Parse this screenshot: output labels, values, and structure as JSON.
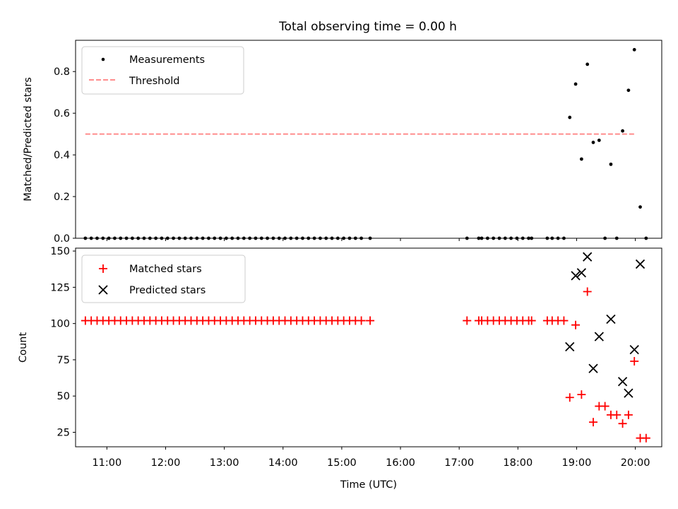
{
  "chart_data": [
    {
      "type": "scatter",
      "title": "Total observing time = 0.00 h",
      "xlabel": "",
      "ylabel": "Matched/Predicted stars",
      "xlim": [
        "10:28",
        "20:27"
      ],
      "ylim": [
        0,
        0.95
      ],
      "yticks": [
        "0.0",
        "0.2",
        "0.4",
        "0.6",
        "0.8"
      ],
      "grid": false,
      "legend_position": "upper-left",
      "series": [
        {
          "name": "Measurements",
          "marker": "dot",
          "color": "#000000",
          "points": [
            [
              "10:38",
              0
            ],
            [
              "10:44",
              0
            ],
            [
              "10:50",
              0
            ],
            [
              "10:56",
              0
            ],
            [
              "11:02",
              0
            ],
            [
              "11:08",
              0
            ],
            [
              "11:14",
              0
            ],
            [
              "11:20",
              0
            ],
            [
              "11:26",
              0
            ],
            [
              "11:32",
              0
            ],
            [
              "11:38",
              0
            ],
            [
              "11:44",
              0
            ],
            [
              "11:50",
              0
            ],
            [
              "11:56",
              0
            ],
            [
              "12:02",
              0
            ],
            [
              "12:08",
              0
            ],
            [
              "12:14",
              0
            ],
            [
              "12:20",
              0
            ],
            [
              "12:26",
              0
            ],
            [
              "12:32",
              0
            ],
            [
              "12:38",
              0
            ],
            [
              "12:44",
              0
            ],
            [
              "12:50",
              0
            ],
            [
              "12:56",
              0
            ],
            [
              "13:02",
              0
            ],
            [
              "13:08",
              0
            ],
            [
              "13:14",
              0
            ],
            [
              "13:20",
              0
            ],
            [
              "13:26",
              0
            ],
            [
              "13:32",
              0
            ],
            [
              "13:38",
              0
            ],
            [
              "13:44",
              0
            ],
            [
              "13:50",
              0
            ],
            [
              "13:56",
              0
            ],
            [
              "14:02",
              0
            ],
            [
              "14:08",
              0
            ],
            [
              "14:14",
              0
            ],
            [
              "14:20",
              0
            ],
            [
              "14:26",
              0
            ],
            [
              "14:32",
              0
            ],
            [
              "14:38",
              0
            ],
            [
              "14:44",
              0
            ],
            [
              "14:50",
              0
            ],
            [
              "14:56",
              0
            ],
            [
              "15:02",
              0
            ],
            [
              "15:08",
              0
            ],
            [
              "15:14",
              0
            ],
            [
              "15:20",
              0
            ],
            [
              "15:29",
              0
            ],
            [
              "17:08",
              0
            ],
            [
              "17:20",
              0
            ],
            [
              "17:23",
              0
            ],
            [
              "17:29",
              0
            ],
            [
              "17:35",
              0
            ],
            [
              "17:41",
              0
            ],
            [
              "17:47",
              0
            ],
            [
              "17:53",
              0
            ],
            [
              "17:59",
              0
            ],
            [
              "18:05",
              0
            ],
            [
              "18:11",
              0
            ],
            [
              "18:14",
              0
            ],
            [
              "18:30",
              0
            ],
            [
              "18:35",
              0
            ],
            [
              "18:41",
              0
            ],
            [
              "18:47",
              0
            ],
            [
              "18:53",
              0.58
            ],
            [
              "18:59",
              0.74
            ],
            [
              "19:05",
              0.38
            ],
            [
              "19:11",
              0.835
            ],
            [
              "19:17",
              0.46
            ],
            [
              "19:23",
              0.47
            ],
            [
              "19:29",
              0
            ],
            [
              "19:35",
              0.355
            ],
            [
              "19:41",
              0
            ],
            [
              "19:47",
              0.515
            ],
            [
              "19:53",
              0.71
            ],
            [
              "19:59",
              0.905
            ],
            [
              "20:05",
              0.15
            ],
            [
              "20:11",
              0
            ]
          ]
        },
        {
          "name": "Threshold",
          "marker": "dashed-line",
          "color": "#ff7f7f",
          "points": [
            [
              "10:38",
              0.5
            ],
            [
              "20:00",
              0.5
            ]
          ]
        }
      ]
    },
    {
      "type": "scatter",
      "title": "",
      "xlabel": "Time (UTC)",
      "ylabel": "Count",
      "xlim": [
        "10:28",
        "20:27"
      ],
      "ylim": [
        15,
        152
      ],
      "yticks": [
        "25",
        "50",
        "75",
        "100",
        "125",
        "150"
      ],
      "xticks": [
        "11:00",
        "12:00",
        "13:00",
        "14:00",
        "15:00",
        "16:00",
        "17:00",
        "18:00",
        "19:00",
        "20:00"
      ],
      "grid": false,
      "legend_position": "upper-left",
      "series": [
        {
          "name": "Matched stars",
          "marker": "plus",
          "color": "#ff0000",
          "points": [
            [
              "10:38",
              102
            ],
            [
              "10:44",
              102
            ],
            [
              "10:50",
              102
            ],
            [
              "10:56",
              102
            ],
            [
              "11:02",
              102
            ],
            [
              "11:08",
              102
            ],
            [
              "11:14",
              102
            ],
            [
              "11:20",
              102
            ],
            [
              "11:26",
              102
            ],
            [
              "11:32",
              102
            ],
            [
              "11:38",
              102
            ],
            [
              "11:44",
              102
            ],
            [
              "11:50",
              102
            ],
            [
              "11:56",
              102
            ],
            [
              "12:02",
              102
            ],
            [
              "12:08",
              102
            ],
            [
              "12:14",
              102
            ],
            [
              "12:20",
              102
            ],
            [
              "12:26",
              102
            ],
            [
              "12:32",
              102
            ],
            [
              "12:38",
              102
            ],
            [
              "12:44",
              102
            ],
            [
              "12:50",
              102
            ],
            [
              "12:56",
              102
            ],
            [
              "13:02",
              102
            ],
            [
              "13:08",
              102
            ],
            [
              "13:14",
              102
            ],
            [
              "13:20",
              102
            ],
            [
              "13:26",
              102
            ],
            [
              "13:32",
              102
            ],
            [
              "13:38",
              102
            ],
            [
              "13:44",
              102
            ],
            [
              "13:50",
              102
            ],
            [
              "13:56",
              102
            ],
            [
              "14:02",
              102
            ],
            [
              "14:08",
              102
            ],
            [
              "14:14",
              102
            ],
            [
              "14:20",
              102
            ],
            [
              "14:26",
              102
            ],
            [
              "14:32",
              102
            ],
            [
              "14:38",
              102
            ],
            [
              "14:44",
              102
            ],
            [
              "14:50",
              102
            ],
            [
              "14:56",
              102
            ],
            [
              "15:02",
              102
            ],
            [
              "15:08",
              102
            ],
            [
              "15:14",
              102
            ],
            [
              "15:20",
              102
            ],
            [
              "15:29",
              102
            ],
            [
              "17:08",
              102
            ],
            [
              "17:20",
              102
            ],
            [
              "17:23",
              102
            ],
            [
              "17:29",
              102
            ],
            [
              "17:35",
              102
            ],
            [
              "17:41",
              102
            ],
            [
              "17:47",
              102
            ],
            [
              "17:53",
              102
            ],
            [
              "17:59",
              102
            ],
            [
              "18:05",
              102
            ],
            [
              "18:11",
              102
            ],
            [
              "18:14",
              102
            ],
            [
              "18:30",
              102
            ],
            [
              "18:35",
              102
            ],
            [
              "18:41",
              102
            ],
            [
              "18:47",
              102
            ],
            [
              "18:53",
              49
            ],
            [
              "18:59",
              99
            ],
            [
              "19:05",
              51
            ],
            [
              "19:11",
              122
            ],
            [
              "19:17",
              32
            ],
            [
              "19:23",
              43
            ],
            [
              "19:29",
              43
            ],
            [
              "19:35",
              37
            ],
            [
              "19:41",
              37
            ],
            [
              "19:47",
              31
            ],
            [
              "19:53",
              37
            ],
            [
              "19:59",
              74
            ],
            [
              "20:05",
              21
            ],
            [
              "20:11",
              21
            ]
          ]
        },
        {
          "name": "Predicted stars",
          "marker": "x",
          "color": "#000000",
          "points": [
            [
              "18:53",
              84
            ],
            [
              "18:59",
              133
            ],
            [
              "19:05",
              135
            ],
            [
              "19:11",
              146
            ],
            [
              "19:17",
              69
            ],
            [
              "19:23",
              91
            ],
            [
              "19:35",
              103
            ],
            [
              "19:47",
              60
            ],
            [
              "19:53",
              52
            ],
            [
              "19:59",
              82
            ],
            [
              "20:05",
              141
            ]
          ]
        }
      ]
    }
  ]
}
